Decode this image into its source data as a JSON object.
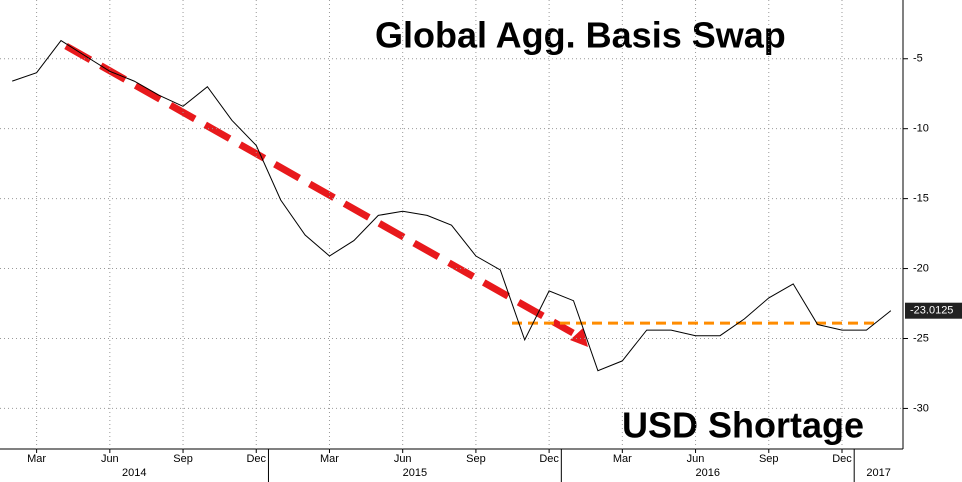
{
  "chart_data": {
    "type": "line",
    "title": "Global Agg. Basis Swap",
    "annotation": "USD Shortage",
    "x": [
      "2014-02",
      "2014-03",
      "2014-04",
      "2014-05",
      "2014-06",
      "2014-07",
      "2014-08",
      "2014-09",
      "2014-10",
      "2014-11",
      "2014-12",
      "2015-01",
      "2015-02",
      "2015-03",
      "2015-04",
      "2015-05",
      "2015-06",
      "2015-07",
      "2015-08",
      "2015-09",
      "2015-10",
      "2015-11",
      "2015-12",
      "2016-01",
      "2016-02",
      "2016-03",
      "2016-04",
      "2016-05",
      "2016-06",
      "2016-07",
      "2016-08",
      "2016-09",
      "2016-10",
      "2016-11",
      "2016-12",
      "2017-01",
      "2017-02"
    ],
    "series": [
      {
        "color": "#000000",
        "values": [
          -6.6,
          -6.0,
          -3.7,
          -4.8,
          -5.9,
          -6.6,
          -7.6,
          -8.4,
          -7.0,
          -9.4,
          -11.2,
          -15.1,
          -17.6,
          -19.1,
          -18.0,
          -16.2,
          -15.9,
          -16.2,
          -16.9,
          -19.1,
          -20.1,
          -25.1,
          -21.6,
          -22.3,
          -27.3,
          -26.6,
          -24.4,
          -24.4,
          -24.8,
          -24.8,
          -23.6,
          -22.1,
          -21.1,
          -24.0,
          -24.4,
          -24.4,
          -23.0125
        ]
      }
    ],
    "reference_level": {
      "value": -23.9,
      "color": "#ff8c00"
    },
    "xlim": [
      "2014-02",
      "2017-02"
    ],
    "xticks": [
      {
        "value": "2014-03",
        "label": "Mar"
      },
      {
        "value": "2014-06",
        "label": "Jun"
      },
      {
        "value": "2014-09",
        "label": "Sep"
      },
      {
        "value": "2014-12",
        "label": "Dec"
      },
      {
        "value": "2015-03",
        "label": "Mar"
      },
      {
        "value": "2015-06",
        "label": "Jun"
      },
      {
        "value": "2015-09",
        "label": "Sep"
      },
      {
        "value": "2015-12",
        "label": "Dec"
      },
      {
        "value": "2016-03",
        "label": "Mar"
      },
      {
        "value": "2016-06",
        "label": "Jun"
      },
      {
        "value": "2016-09",
        "label": "Sep"
      },
      {
        "value": "2016-12",
        "label": "Dec"
      }
    ],
    "year_labels": [
      "2014",
      "2015",
      "2016",
      "2017"
    ],
    "ylim": [
      -32.9,
      -0.8
    ],
    "yticks": [
      -5,
      -10,
      -15,
      -20,
      -25,
      -30
    ],
    "grid": true
  }
}
